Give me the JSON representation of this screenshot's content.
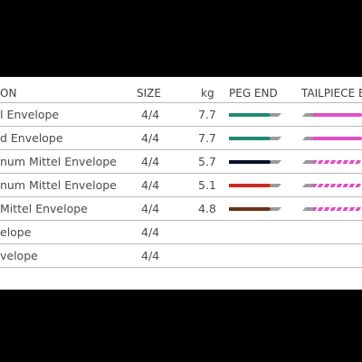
{
  "table": {
    "headers": {
      "name": "ON",
      "size": "SIZE",
      "kg": "kg",
      "peg_end": "PEG END",
      "tailpiece_end": "TAILPIECE E"
    },
    "rows": [
      {
        "name": "l Envelope",
        "size": "4/4",
        "kg": "7.7",
        "peg_color": "#1f8a73",
        "tail_color": "#e14fc3",
        "tail_striped": false
      },
      {
        "name": "d Envelope",
        "size": "4/4",
        "kg": "7.7",
        "peg_color": "#1f8a73",
        "tail_color": "#e14fc3",
        "tail_striped": false
      },
      {
        "name": "num Mittel Envelope",
        "size": "4/4",
        "kg": "5.7",
        "peg_color": "#0d0f2e",
        "tail_color": "#e14fc3",
        "tail_striped": true
      },
      {
        "name": "num Mittel Envelope",
        "size": "4/4",
        "kg": "5.1",
        "peg_color": "#c72a1f",
        "tail_color": "#e14fc3",
        "tail_striped": true
      },
      {
        "name": "Mittel Envelope",
        "size": "4/4",
        "kg": "4.8",
        "peg_color": "#6b3418",
        "tail_color": "#e14fc3",
        "tail_striped": true
      },
      {
        "name": "elope",
        "size": "4/4",
        "kg": "",
        "peg_color": "",
        "tail_color": "",
        "tail_striped": false
      },
      {
        "name": "velope",
        "size": "4/4",
        "kg": "",
        "peg_color": "",
        "tail_color": "",
        "tail_striped": false
      }
    ]
  }
}
